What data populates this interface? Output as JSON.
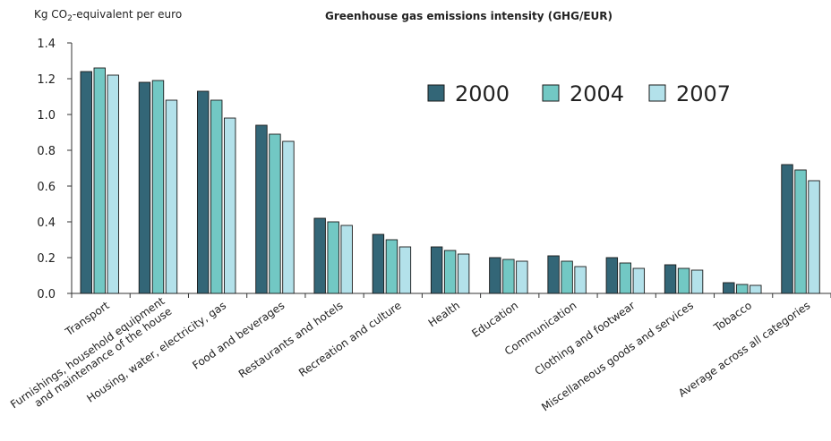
{
  "colors": {
    "2000": "#336677",
    "2004": "#72c8c4",
    "2007": "#b3e1ea",
    "axis": "#333333",
    "bar_stroke": "#1a1a1a"
  },
  "chart_data": {
    "type": "bar",
    "title": "Greenhouse gas emissions intensity (GHG/EUR)",
    "ylabel_prefix": "Kg CO",
    "ylabel_sub": "2",
    "ylabel_suffix": "-equivalent per euro",
    "xlabel": "",
    "ylim": [
      0,
      1.4
    ],
    "yticks": [
      "0.0",
      "0.2",
      "0.4",
      "0.6",
      "0.8",
      "1.0",
      "1.2",
      "1.4"
    ],
    "grid": false,
    "legend_position": "top-right",
    "categories": [
      [
        "Transport"
      ],
      [
        "Furnishings, household equipment",
        "and maintenance of the house"
      ],
      [
        "Housing, water, electricity, gas"
      ],
      [
        "Food and beverages"
      ],
      [
        "Restaurants and hotels"
      ],
      [
        "Recreation and culture"
      ],
      [
        "Health"
      ],
      [
        "Education"
      ],
      [
        "Communication"
      ],
      [
        "Clothing and footwear"
      ],
      [
        "Miscellaneous goods and services"
      ],
      [
        "Tobacco"
      ],
      [
        "Average across all categories"
      ]
    ],
    "series": [
      {
        "name": "2000",
        "values": [
          1.24,
          1.18,
          1.13,
          0.94,
          0.42,
          0.33,
          0.26,
          0.2,
          0.21,
          0.2,
          0.16,
          0.06,
          0.72
        ]
      },
      {
        "name": "2004",
        "values": [
          1.26,
          1.19,
          1.08,
          0.89,
          0.4,
          0.3,
          0.24,
          0.19,
          0.18,
          0.17,
          0.14,
          0.05,
          0.69
        ]
      },
      {
        "name": "2007",
        "values": [
          1.22,
          1.08,
          0.98,
          0.85,
          0.38,
          0.26,
          0.22,
          0.18,
          0.15,
          0.14,
          0.13,
          0.045,
          0.63
        ]
      }
    ]
  }
}
